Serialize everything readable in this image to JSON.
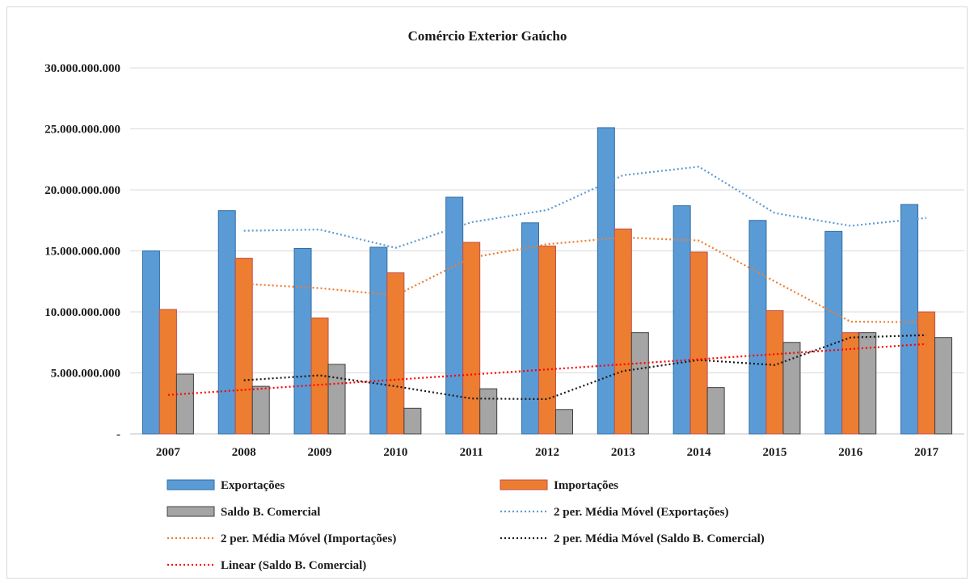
{
  "chart_data": {
    "type": "bar",
    "title": "Comércio Exterior Gaúcho",
    "categories": [
      "2007",
      "2008",
      "2009",
      "2010",
      "2011",
      "2012",
      "2013",
      "2014",
      "2015",
      "2016",
      "2017"
    ],
    "ylim": [
      0,
      30000000000
    ],
    "yticks": [
      {
        "value": 0,
        "label": "-"
      },
      {
        "value": 5000000000,
        "label": "5.000.000.000"
      },
      {
        "value": 10000000000,
        "label": "10.000.000.000"
      },
      {
        "value": 15000000000,
        "label": "15.000.000.000"
      },
      {
        "value": 20000000000,
        "label": "20.000.000.000"
      },
      {
        "value": 25000000000,
        "label": "25.000.000.000"
      },
      {
        "value": 30000000000,
        "label": "30.000.000.000"
      }
    ],
    "grid": true,
    "legend_position": "bottom",
    "series": [
      {
        "name": "Exportações",
        "kind": "bar",
        "color": "#5b9bd5",
        "values": [
          15000000000,
          18300000000,
          15200000000,
          15300000000,
          19400000000,
          17300000000,
          25100000000,
          18700000000,
          17500000000,
          16600000000,
          18800000000
        ]
      },
      {
        "name": "Importações",
        "kind": "bar",
        "color": "#ed7d31",
        "values": [
          10200000000,
          14400000000,
          9500000000,
          13200000000,
          15700000000,
          15400000000,
          16800000000,
          14900000000,
          10100000000,
          8300000000,
          10000000000
        ]
      },
      {
        "name": "Saldo B. Comercial",
        "kind": "bar",
        "color": "#a5a5a5",
        "values": [
          4900000000,
          3900000000,
          5700000000,
          2100000000,
          3700000000,
          2000000000,
          8300000000,
          3800000000,
          7500000000,
          8300000000,
          7900000000
        ]
      }
    ],
    "trendlines": [
      {
        "name": "2 per. Média Móvel (Exportações)",
        "color": "#5b9bd5",
        "style": "dotted"
      },
      {
        "name": "2 per. Média Móvel (Importações)",
        "color": "#ed7d31",
        "style": "dotted"
      },
      {
        "name": "2 per. Média Móvel (Saldo B. Comercial)",
        "color": "#1a1a1a",
        "style": "dotted"
      },
      {
        "name": "Linear (Saldo B. Comercial)",
        "color": "#ff0000",
        "style": "dotted"
      }
    ]
  }
}
